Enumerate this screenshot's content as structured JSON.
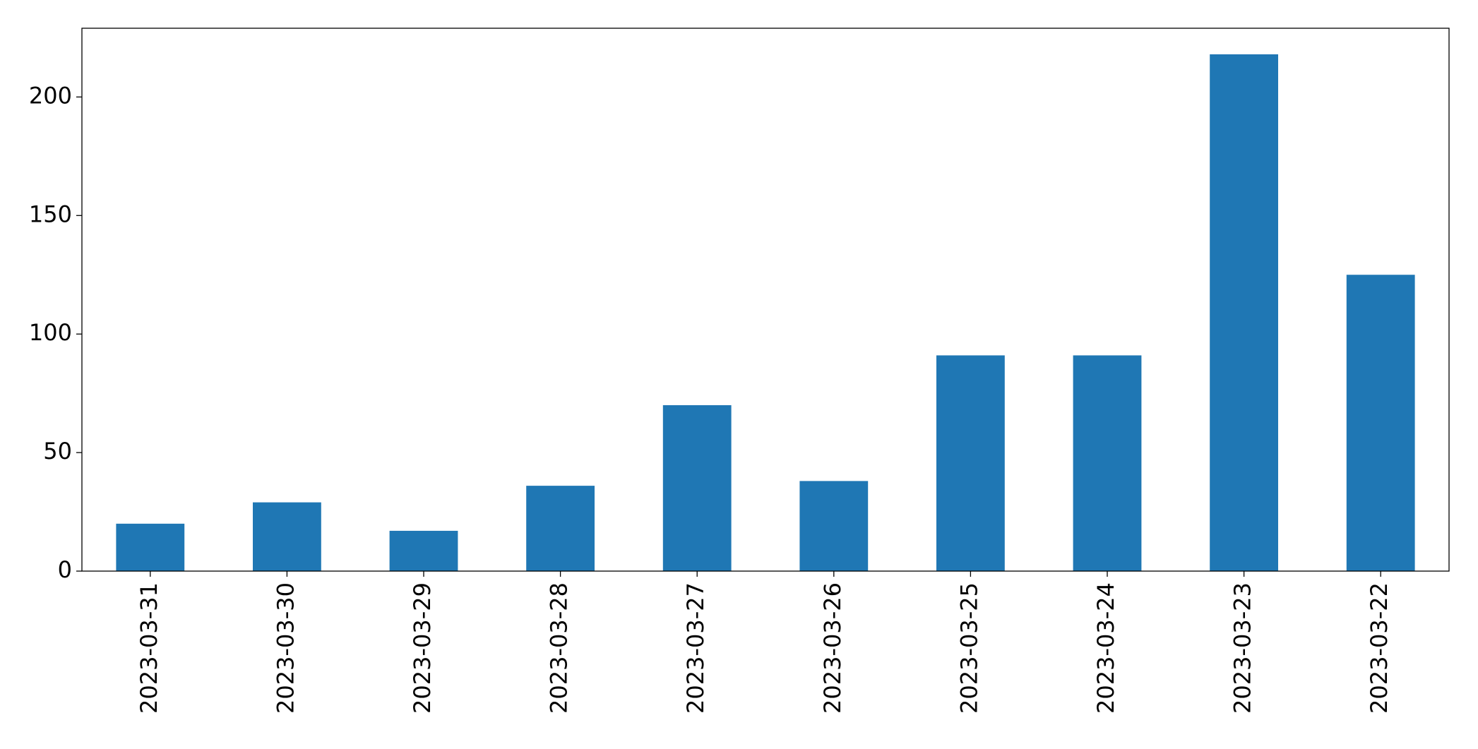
{
  "chart_data": {
    "type": "bar",
    "categories": [
      "2023-03-31",
      "2023-03-30",
      "2023-03-29",
      "2023-03-28",
      "2023-03-27",
      "2023-03-26",
      "2023-03-25",
      "2023-03-24",
      "2023-03-23",
      "2023-03-22"
    ],
    "values": [
      20,
      29,
      17,
      36,
      70,
      38,
      91,
      91,
      218,
      125
    ],
    "color": "#1f77b4",
    "ylim": [
      0,
      229
    ],
    "yticks": [
      0,
      50,
      100,
      150,
      200
    ],
    "grid": false
  }
}
